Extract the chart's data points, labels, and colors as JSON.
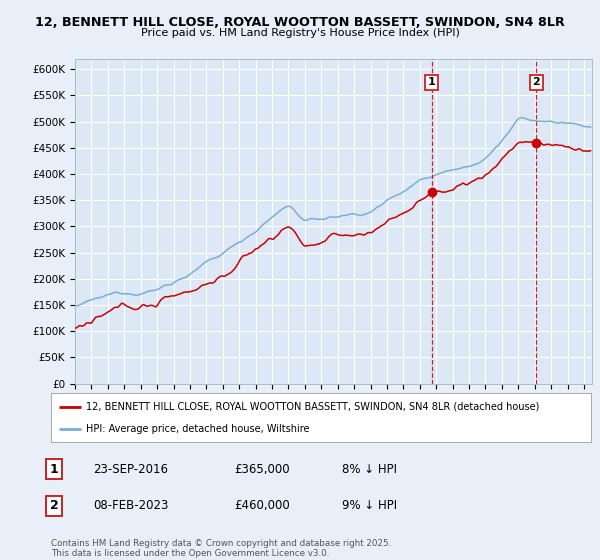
{
  "title1": "12, BENNETT HILL CLOSE, ROYAL WOOTTON BASSETT, SWINDON, SN4 8LR",
  "title2": "Price paid vs. HM Land Registry's House Price Index (HPI)",
  "xlim_start": 1995.0,
  "xlim_end": 2026.5,
  "ylim_min": 0,
  "ylim_max": 620000,
  "yticks": [
    0,
    50000,
    100000,
    150000,
    200000,
    250000,
    300000,
    350000,
    400000,
    450000,
    500000,
    550000,
    600000
  ],
  "background_color": "#e8eff8",
  "plot_bg_color": "#dce8f5",
  "grid_color": "#ffffff",
  "line1_color": "#cc0000",
  "line2_color": "#7aaed6",
  "marker1_date": 2016.73,
  "marker1_value": 365000,
  "marker2_date": 2023.1,
  "marker2_value": 460000,
  "vline_color": "#cc0000",
  "legend_line1": "12, BENNETT HILL CLOSE, ROYAL WOOTTON BASSETT, SWINDON, SN4 8LR (detached house)",
  "legend_line2": "HPI: Average price, detached house, Wiltshire",
  "annotation1_label": "1",
  "annotation1_date": "23-SEP-2016",
  "annotation1_price": "£365,000",
  "annotation1_pct": "8% ↓ HPI",
  "annotation2_label": "2",
  "annotation2_date": "08-FEB-2023",
  "annotation2_price": "£460,000",
  "annotation2_pct": "9% ↓ HPI",
  "footer": "Contains HM Land Registry data © Crown copyright and database right 2025.\nThis data is licensed under the Open Government Licence v3.0."
}
